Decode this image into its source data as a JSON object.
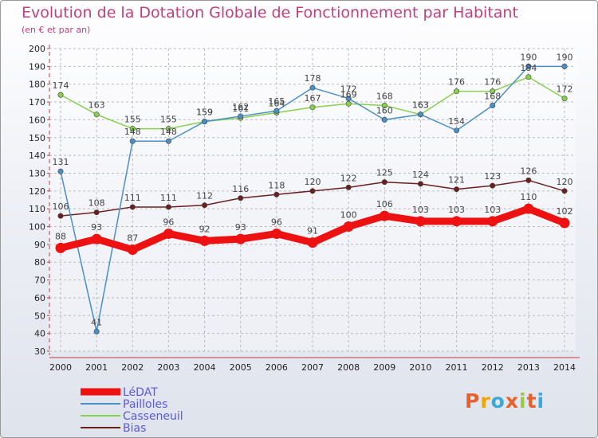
{
  "header": {
    "title": "Evolution de la Dotation Globale de Fonctionnement par Habitant",
    "subtitle": "(en € et par an)"
  },
  "logo": {
    "text": "Proxiti",
    "colors": [
      "#e8612b",
      "#f0a500",
      "#3aa8d8",
      "#e8612b",
      "#9ac93a",
      "#e8612b",
      "#3aa8d8"
    ]
  },
  "chart_data": {
    "type": "line",
    "title": "Evolution de la Dotation Globale de Fonctionnement par Habitant",
    "subtitle": "(en € et par an)",
    "xlabel": "",
    "ylabel": "",
    "categories": [
      "2000",
      "2001",
      "2002",
      "2003",
      "2004",
      "2005",
      "2006",
      "2007",
      "2008",
      "2009",
      "2010",
      "2011",
      "2012",
      "2013",
      "2014"
    ],
    "y_ticks": [
      30,
      40,
      50,
      60,
      70,
      80,
      90,
      100,
      110,
      120,
      130,
      140,
      150,
      160,
      170,
      180,
      190,
      200
    ],
    "ylim": [
      30,
      200
    ],
    "grid": true,
    "legend_position": "bottom-left",
    "series": [
      {
        "name": "LéDAT",
        "color": "#ee1111",
        "values": [
          88,
          93,
          87,
          96,
          92,
          93,
          96,
          91,
          100,
          106,
          103,
          103,
          103,
          110,
          102
        ]
      },
      {
        "name": "Pailloles",
        "color": "#4a90c8",
        "values": [
          131,
          41,
          148,
          148,
          159,
          162,
          165,
          178,
          172,
          160,
          163,
          154,
          168,
          190,
          190
        ]
      },
      {
        "name": "Casseneuil",
        "color": "#88d050",
        "values": [
          174,
          163,
          155,
          155,
          159,
          161,
          164,
          167,
          169,
          168,
          163,
          176,
          176,
          184,
          172
        ]
      },
      {
        "name": "Bias",
        "color": "#6b2020",
        "values": [
          106,
          108,
          111,
          111,
          112,
          116,
          118,
          120,
          122,
          125,
          124,
          121,
          123,
          126,
          120
        ]
      }
    ]
  }
}
